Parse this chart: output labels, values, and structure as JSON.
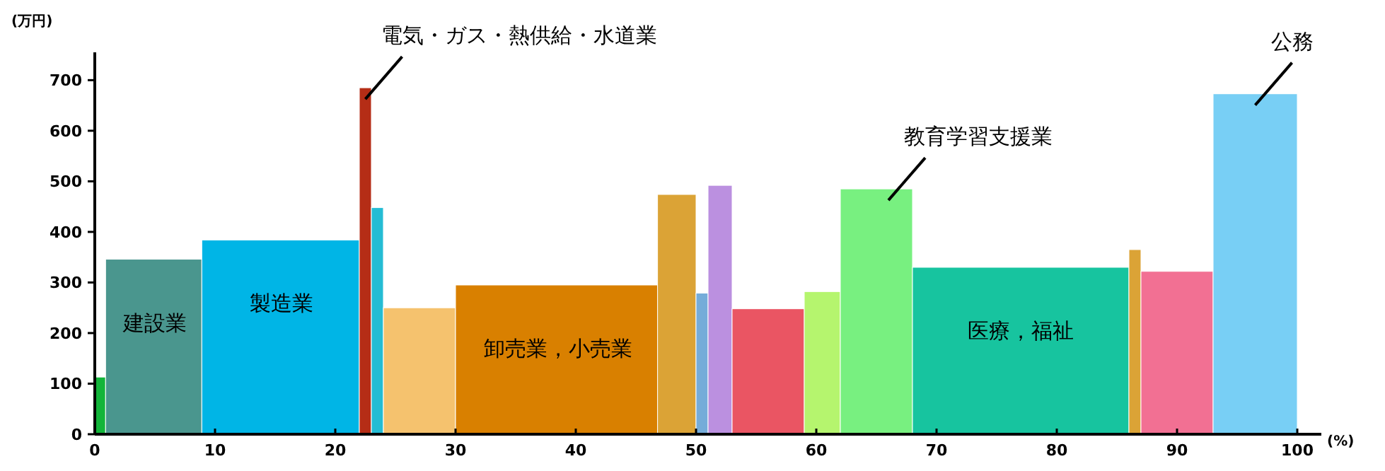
{
  "chart_data": {
    "type": "histogram",
    "ylabel": "(万円)",
    "xlabel": "(%)",
    "bins": [
      0,
      0.9,
      8.9,
      22.0,
      23.0,
      24.0,
      30.0,
      46.8,
      50.0,
      51.0,
      53.0,
      59.0,
      62.0,
      68.0,
      86.0,
      87.0,
      93.0,
      100
    ],
    "values": [
      113,
      346,
      384,
      685,
      448,
      250,
      295,
      474,
      279,
      492,
      248,
      282,
      485,
      330,
      365,
      322,
      673
    ],
    "colors": [
      "#13b53a",
      "#4a968e",
      "#00b5e6",
      "#b52d16",
      "#24bcd4",
      "#f5c26e",
      "#d98000",
      "#dba336",
      "#75acd9",
      "#bb90e0",
      "#ea5563",
      "#b5f56e",
      "#78f080",
      "#17c49f",
      "#dba336",
      "#f27093",
      "#78cff5"
    ],
    "xlim": [
      0,
      102
    ],
    "ylim": [
      0,
      755
    ],
    "xticks": [
      0,
      10,
      20,
      30,
      40,
      50,
      60,
      70,
      80,
      90,
      100
    ],
    "yticks": [
      0,
      100,
      200,
      300,
      400,
      500,
      600,
      700
    ],
    "annotations": [
      {
        "text": "建設業",
        "x": 5,
        "y": 346
      },
      {
        "text": "製造業",
        "x": 15.5,
        "y": 384
      },
      {
        "text": "電気・ガス・熱供給・水道業",
        "x": 22.5,
        "y": 685
      },
      {
        "text": "卸売業，小売業",
        "x": 38.5,
        "y": 295
      },
      {
        "text": "教育学習支援業",
        "x": 66,
        "y": 485
      },
      {
        "text": "医療，福祉",
        "x": 77,
        "y": 330
      },
      {
        "text": "公務",
        "x": 96.5,
        "y": 673
      }
    ]
  }
}
